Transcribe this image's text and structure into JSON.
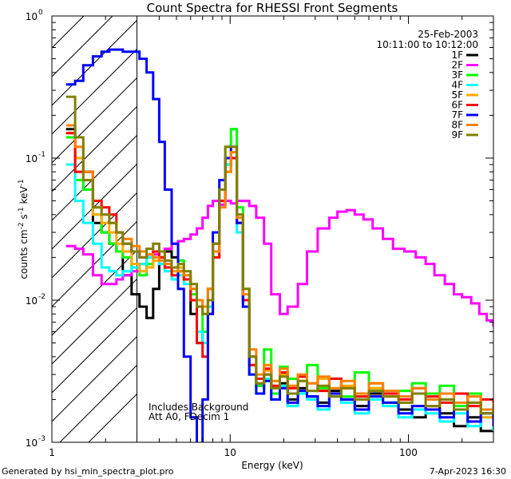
{
  "chart_data": {
    "type": "line",
    "title": "Count Spectra for RHESSI Front Segments",
    "xlabel": "Energy (keV)",
    "ylabel": {
      "base": "counts cm",
      "e1": "-2",
      "mid1": " s",
      "e2": "-1",
      "mid2": " keV",
      "e3": "-1"
    },
    "xscale": "log",
    "yscale": "log",
    "xlim": [
      1,
      300
    ],
    "ylim": [
      0.001,
      1
    ],
    "x_ticks": [
      {
        "v": 1,
        "label": "1"
      },
      {
        "v": 10,
        "label": "10"
      },
      {
        "v": 100,
        "label": "100"
      }
    ],
    "y_ticks": [
      {
        "v": 0.001,
        "base": "10",
        "exp": "-3"
      },
      {
        "v": 0.01,
        "base": "10",
        "exp": "-2"
      },
      {
        "v": 0.1,
        "base": "10",
        "exp": "-1"
      },
      {
        "v": 1,
        "base": "10",
        "exp": "0"
      }
    ],
    "date": "25-Feb-2003",
    "time_range": "10:11:00 to 10:12:00",
    "hatched_region": {
      "x_from": 1,
      "x_to": 3
    },
    "annotations": [
      "Includes Background",
      "Att A0, FDecim 1"
    ],
    "series": [
      {
        "name": "1F",
        "color": "#000000",
        "x": [
          1.2,
          1.35,
          1.5,
          1.7,
          1.9,
          2.1,
          2.3,
          2.5,
          2.8,
          3.1,
          3.4,
          3.7,
          4.0,
          4.3,
          4.7,
          5.1,
          5.5,
          6.0,
          6.5,
          7.0,
          7.5,
          8.0,
          8.7,
          9.4,
          10.1,
          10.9,
          11.8,
          12.8,
          14,
          15.5,
          17,
          19,
          21,
          24,
          27,
          31,
          36,
          42,
          50,
          60,
          72,
          88,
          105,
          125,
          150,
          180,
          215,
          255,
          300
        ],
        "y": [
          0.16,
          0.1,
          0.08,
          0.035,
          0.03,
          0.025,
          0.022,
          0.015,
          0.011,
          0.009,
          0.0075,
          0.012,
          0.018,
          0.022,
          0.02,
          0.017,
          0.014,
          0.008,
          0.005,
          0.006,
          0.012,
          0.025,
          0.05,
          0.09,
          0.1,
          0.035,
          0.01,
          0.004,
          0.0025,
          0.003,
          0.0022,
          0.0026,
          0.002,
          0.0024,
          0.0021,
          0.0019,
          0.0023,
          0.002,
          0.0018,
          0.0022,
          0.0019,
          0.0017,
          0.0015,
          0.0018,
          0.0016,
          0.0013,
          0.0015,
          0.0012,
          0.0014
        ]
      },
      {
        "name": "2F",
        "color": "#ff00ff",
        "x": [
          1.2,
          1.35,
          1.5,
          1.7,
          1.9,
          2.1,
          2.3,
          2.5,
          2.8,
          3.1,
          3.4,
          3.7,
          4.0,
          4.3,
          4.7,
          5.1,
          5.5,
          6.0,
          6.5,
          7.0,
          7.5,
          8.0,
          8.7,
          9.4,
          10.1,
          10.9,
          11.8,
          12.8,
          14,
          15.5,
          17,
          19,
          21,
          24,
          27,
          31,
          36,
          40,
          45,
          50,
          56,
          63,
          72,
          82,
          95,
          110,
          125,
          140,
          160,
          180,
          200,
          225,
          250,
          275,
          300
        ],
        "y": [
          0.024,
          0.023,
          0.021,
          0.015,
          0.013,
          0.013,
          0.014,
          0.015,
          0.016,
          0.018,
          0.02,
          0.021,
          0.022,
          0.023,
          0.025,
          0.026,
          0.027,
          0.029,
          0.032,
          0.038,
          0.046,
          0.05,
          0.047,
          0.05,
          0.048,
          0.05,
          0.05,
          0.046,
          0.038,
          0.025,
          0.011,
          0.008,
          0.009,
          0.013,
          0.022,
          0.032,
          0.038,
          0.042,
          0.043,
          0.04,
          0.037,
          0.032,
          0.027,
          0.023,
          0.022,
          0.02,
          0.018,
          0.015,
          0.013,
          0.011,
          0.0105,
          0.0095,
          0.008,
          0.0072,
          0.0065
        ]
      },
      {
        "name": "3F",
        "color": "#00ff00",
        "x": [
          1.2,
          1.35,
          1.5,
          1.7,
          1.9,
          2.1,
          2.3,
          2.5,
          2.8,
          3.1,
          3.4,
          3.7,
          4.0,
          4.3,
          4.7,
          5.1,
          5.5,
          6.0,
          6.5,
          7.0,
          7.5,
          8.0,
          8.7,
          9.4,
          10.1,
          10.9,
          11.8,
          12.8,
          14,
          15.5,
          17,
          19,
          21,
          24,
          27,
          31,
          36,
          42,
          50,
          60,
          72,
          88,
          105,
          125,
          150,
          180,
          215,
          255,
          300
        ],
        "y": [
          0.14,
          0.07,
          0.06,
          0.04,
          0.03,
          0.025,
          0.022,
          0.02,
          0.017,
          0.015,
          0.018,
          0.022,
          0.02,
          0.017,
          0.016,
          0.019,
          0.014,
          0.011,
          0.01,
          0.006,
          0.01,
          0.02,
          0.06,
          0.12,
          0.16,
          0.045,
          0.012,
          0.003,
          0.0025,
          0.0045,
          0.0022,
          0.0034,
          0.0028,
          0.0022,
          0.0035,
          0.0024,
          0.0028,
          0.0021,
          0.0031,
          0.0024,
          0.0019,
          0.0023,
          0.0026,
          0.0022,
          0.0025,
          0.0018,
          0.0022,
          0.0016,
          0.0019
        ]
      },
      {
        "name": "4F",
        "color": "#00ffff",
        "x": [
          1.2,
          1.35,
          1.5,
          1.7,
          1.9,
          2.1,
          2.3,
          2.5,
          2.8,
          3.1,
          3.4,
          3.7,
          4.0,
          4.3,
          4.7,
          5.1,
          5.5,
          6.0,
          6.5,
          7.0,
          7.5,
          8.0,
          8.7,
          9.4,
          10.1,
          10.9,
          11.8,
          12.8,
          14,
          15.5,
          17,
          19,
          21,
          24,
          27,
          31,
          36,
          42,
          50,
          60,
          72,
          88,
          105,
          125,
          150,
          180,
          215,
          255,
          300
        ],
        "y": [
          0.09,
          0.05,
          0.035,
          0.025,
          0.017,
          0.016,
          0.015,
          0.016,
          0.017,
          0.018,
          0.02,
          0.022,
          0.018,
          0.016,
          0.014,
          0.015,
          0.013,
          0.01,
          0.006,
          0.005,
          0.009,
          0.02,
          0.05,
          0.09,
          0.1,
          0.03,
          0.009,
          0.003,
          0.0022,
          0.0028,
          0.002,
          0.0025,
          0.0018,
          0.0022,
          0.002,
          0.0017,
          0.0021,
          0.0019,
          0.0016,
          0.002,
          0.0018,
          0.0015,
          0.0017,
          0.0016,
          0.0014,
          0.0016,
          0.0013,
          0.0015,
          0.0012
        ]
      },
      {
        "name": "5F",
        "color": "#ffaa00",
        "x": [
          1.2,
          1.35,
          1.5,
          1.7,
          1.9,
          2.1,
          2.3,
          2.5,
          2.8,
          3.1,
          3.4,
          3.7,
          4.0,
          4.3,
          4.7,
          5.1,
          5.5,
          6.0,
          6.5,
          7.0,
          7.5,
          8.0,
          8.7,
          9.4,
          10.1,
          10.9,
          11.8,
          12.8,
          14,
          15.5,
          17,
          19,
          21,
          24,
          27,
          31,
          36,
          42,
          50,
          60,
          72,
          88,
          105,
          125,
          150,
          180,
          215,
          255,
          300
        ],
        "y": [
          0.15,
          0.1,
          0.07,
          0.04,
          0.035,
          0.03,
          0.025,
          0.022,
          0.018,
          0.016,
          0.017,
          0.019,
          0.02,
          0.018,
          0.016,
          0.017,
          0.015,
          0.012,
          0.009,
          0.008,
          0.012,
          0.025,
          0.05,
          0.08,
          0.12,
          0.04,
          0.012,
          0.004,
          0.0026,
          0.0032,
          0.0024,
          0.003,
          0.0022,
          0.0027,
          0.0023,
          0.0028,
          0.0022,
          0.0025,
          0.002,
          0.0024,
          0.0021,
          0.0019,
          0.0022,
          0.0018,
          0.002,
          0.0017,
          0.0019,
          0.0015,
          0.0017
        ]
      },
      {
        "name": "6F",
        "color": "#ff0000",
        "x": [
          1.2,
          1.35,
          1.5,
          1.7,
          1.9,
          2.1,
          2.3,
          2.5,
          2.8,
          3.1,
          3.4,
          3.7,
          4.0,
          4.3,
          4.7,
          5.1,
          5.5,
          6.0,
          6.5,
          7.0,
          7.5,
          8.0,
          8.7,
          9.4,
          10.1,
          10.9,
          11.8,
          12.8,
          14,
          15.5,
          17,
          19,
          21,
          24,
          27,
          31,
          36,
          42,
          50,
          60,
          72,
          88,
          105,
          125,
          150,
          180,
          215,
          255,
          300
        ],
        "y": [
          0.15,
          0.08,
          0.08,
          0.05,
          0.045,
          0.04,
          0.03,
          0.025,
          0.022,
          0.02,
          0.021,
          0.022,
          0.02,
          0.017,
          0.015,
          0.016,
          0.014,
          0.01,
          0.005,
          0.004,
          0.008,
          0.02,
          0.05,
          0.1,
          0.1,
          0.035,
          0.01,
          0.0035,
          0.0028,
          0.0033,
          0.0025,
          0.0031,
          0.0024,
          0.0029,
          0.0026,
          0.0023,
          0.0028,
          0.0024,
          0.0021,
          0.0026,
          0.0022,
          0.002,
          0.0024,
          0.0021,
          0.0019,
          0.0022,
          0.0018,
          0.002,
          0.0017
        ]
      },
      {
        "name": "7F",
        "color": "#0000ff",
        "x": [
          1.2,
          1.35,
          1.5,
          1.7,
          1.9,
          2.1,
          2.3,
          2.5,
          2.8,
          3.1,
          3.4,
          3.7,
          4.0,
          4.3,
          4.7,
          5.1,
          5.5,
          6.0,
          6.5,
          7.0,
          7.5,
          8.0,
          8.7,
          9.4,
          10.1,
          10.9,
          11.8,
          12.8,
          14,
          15.5,
          17,
          19,
          21,
          24,
          27,
          31,
          36,
          42,
          50,
          60,
          72,
          88,
          105,
          125,
          150,
          180,
          215,
          255,
          300
        ],
        "y": [
          0.33,
          0.35,
          0.45,
          0.52,
          0.56,
          0.58,
          0.58,
          0.56,
          0.56,
          0.5,
          0.4,
          0.26,
          0.13,
          0.06,
          0.025,
          0.012,
          0.004,
          0.0015,
          0.0008,
          0.002,
          0.008,
          0.03,
          0.07,
          0.1,
          0.12,
          0.035,
          0.009,
          0.003,
          0.0022,
          0.0027,
          0.002,
          0.0024,
          0.0019,
          0.0023,
          0.0021,
          0.0018,
          0.0022,
          0.002,
          0.0017,
          0.0021,
          0.0019,
          0.0016,
          0.0018,
          0.0017,
          0.0015,
          0.0017,
          0.0014,
          0.0016,
          0.0013
        ]
      },
      {
        "name": "8F",
        "color": "#ff8000",
        "x": [
          1.2,
          1.35,
          1.5,
          1.7,
          1.9,
          2.1,
          2.3,
          2.5,
          2.8,
          3.1,
          3.4,
          3.7,
          4.0,
          4.3,
          4.7,
          5.1,
          5.5,
          6.0,
          6.5,
          7.0,
          7.5,
          8.0,
          8.7,
          9.4,
          10.1,
          10.9,
          11.8,
          12.8,
          14,
          15.5,
          17,
          19,
          21,
          24,
          27,
          31,
          36,
          42,
          50,
          60,
          72,
          88,
          105,
          125,
          150,
          180,
          215,
          255,
          300
        ],
        "y": [
          0.17,
          0.12,
          0.08,
          0.045,
          0.04,
          0.035,
          0.03,
          0.027,
          0.024,
          0.022,
          0.021,
          0.02,
          0.019,
          0.018,
          0.017,
          0.016,
          0.015,
          0.012,
          0.01,
          0.009,
          0.012,
          0.022,
          0.045,
          0.08,
          0.11,
          0.038,
          0.011,
          0.0045,
          0.003,
          0.0035,
          0.0027,
          0.0033,
          0.0025,
          0.003,
          0.0026,
          0.0029,
          0.0024,
          0.0027,
          0.0022,
          0.0026,
          0.0023,
          0.0021,
          0.0024,
          0.002,
          0.0022,
          0.0019,
          0.0021,
          0.0017,
          0.0019
        ]
      },
      {
        "name": "9F",
        "color": "#808000",
        "x": [
          1.2,
          1.35,
          1.5,
          1.7,
          1.9,
          2.1,
          2.3,
          2.5,
          2.8,
          3.1,
          3.4,
          3.7,
          4.0,
          4.3,
          4.7,
          5.1,
          5.5,
          6.0,
          6.5,
          7.0,
          7.5,
          8.0,
          8.7,
          9.4,
          10.1,
          10.9,
          11.8,
          12.8,
          14,
          15.5,
          17,
          19,
          21,
          24,
          27,
          31,
          36,
          42,
          50,
          60,
          72,
          88,
          105,
          125,
          150,
          180,
          215,
          255,
          300
        ],
        "y": [
          0.27,
          0.14,
          0.07,
          0.045,
          0.04,
          0.035,
          0.03,
          0.025,
          0.022,
          0.02,
          0.023,
          0.025,
          0.022,
          0.019,
          0.017,
          0.018,
          0.016,
          0.013,
          0.009,
          0.008,
          0.01,
          0.025,
          0.06,
          0.12,
          0.12,
          0.04,
          0.012,
          0.004,
          0.0026,
          0.003,
          0.0024,
          0.0029,
          0.0022,
          0.0027,
          0.0023,
          0.0025,
          0.0021,
          0.0024,
          0.002,
          0.0023,
          0.0021,
          0.0019,
          0.0022,
          0.0018,
          0.002,
          0.0017,
          0.0019,
          0.0016,
          0.0018
        ]
      }
    ]
  },
  "footer": {
    "generated_by": "Generated by hsi_min_spectra_plot.pro",
    "timestamp": "7-Apr-2023 16:30"
  }
}
